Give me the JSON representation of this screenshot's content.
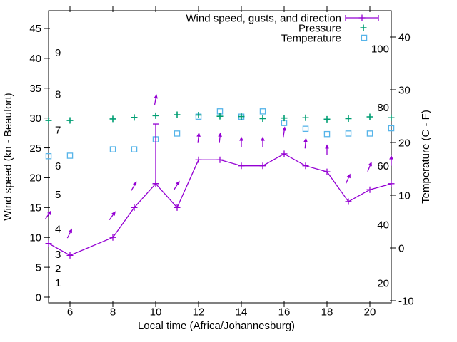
{
  "chart_data": {
    "type": "line",
    "title": "",
    "xlabel": "Local time (Africa/Johannesburg)",
    "ylabel": "Wind speed (kn - Beaufort)",
    "y2label": "Temperature (C - F)",
    "legend": [
      "Wind speed, gusts, and direction",
      "Pressure",
      "Temperature"
    ],
    "legend_position": "top-right-inside",
    "grid": false,
    "x_axis": {
      "lim": [
        5,
        21
      ],
      "ticks": [
        6,
        8,
        10,
        12,
        14,
        16,
        18,
        20
      ]
    },
    "y_axis_wind_kn": {
      "lim": [
        -1,
        48
      ],
      "ticks": [
        0,
        5,
        10,
        15,
        20,
        25,
        30,
        35,
        40,
        45
      ]
    },
    "y2_axis_temp_c": {
      "lim": [
        -10,
        44
      ],
      "ticks": [
        -10,
        0,
        10,
        20,
        30,
        40
      ]
    },
    "fahrenheit_inner_labels": [
      20,
      40,
      60,
      80,
      100
    ],
    "beaufort_inner_labels": [
      {
        "b": "1",
        "kn": 2.4
      },
      {
        "b": "2",
        "kn": 4.8
      },
      {
        "b": "3",
        "kn": 7.2
      },
      {
        "b": "4",
        "kn": 11.4
      },
      {
        "b": "5",
        "kn": 17.2
      },
      {
        "b": "6",
        "kn": 22.0
      },
      {
        "b": "7",
        "kn": 28.0
      },
      {
        "b": "8",
        "kn": 34.0
      },
      {
        "b": "9",
        "kn": 41.0
      }
    ],
    "hours": [
      5,
      6,
      8,
      9,
      10,
      11,
      12,
      13,
      14,
      15,
      16,
      17,
      18,
      19,
      20,
      21
    ],
    "series": [
      {
        "name": "Wind speed, gusts, and direction",
        "style": "line-with-error-bars",
        "color": "#9400d3",
        "axis": "wind_kn",
        "speed_kn": [
          9,
          7,
          10,
          15,
          19,
          15,
          23,
          23,
          22,
          22,
          24,
          22,
          21,
          16,
          18,
          19
        ],
        "gust_kn": [
          9,
          7,
          10,
          15,
          29,
          15,
          23,
          23,
          22,
          22,
          24,
          22,
          21,
          16,
          18,
          19
        ]
      },
      {
        "name": "Pressure",
        "style": "points-plus",
        "color": "#009e73",
        "axis": "wind_kn_scale",
        "values_inhg": [
          29.6,
          29.6,
          29.85,
          30.1,
          30.4,
          30.55,
          30.5,
          30.3,
          30.25,
          29.9,
          30.0,
          30.05,
          29.8,
          29.9,
          30.2,
          30.05
        ]
      },
      {
        "name": "Temperature",
        "style": "points-open-square",
        "color": "#56b4e9",
        "axis": "temp_c",
        "values_c": [
          17.4,
          17.5,
          18.7,
          18.7,
          20.6,
          21.7,
          24.9,
          25.9,
          24.9,
          25.9,
          23.7,
          22.6,
          21.6,
          21.7,
          21.7,
          22.7
        ]
      }
    ],
    "wind_direction_arrows": [
      {
        "hour": 5,
        "tip_kn": 14.5,
        "angle_deg": 55
      },
      {
        "hour": 6,
        "tip_kn": 11.5,
        "angle_deg": 64
      },
      {
        "hour": 8,
        "tip_kn": 14.4,
        "angle_deg": 55
      },
      {
        "hour": 9,
        "tip_kn": 19.4,
        "angle_deg": 60
      },
      {
        "hour": 10,
        "tip_kn": 34.0,
        "angle_deg": 80
      },
      {
        "hour": 11,
        "tip_kn": 19.5,
        "angle_deg": 58
      },
      {
        "hour": 12,
        "tip_kn": 27.6,
        "angle_deg": 84
      },
      {
        "hour": 13,
        "tip_kn": 27.6,
        "angle_deg": 84
      },
      {
        "hour": 14,
        "tip_kn": 26.9,
        "angle_deg": 90
      },
      {
        "hour": 15,
        "tip_kn": 26.9,
        "angle_deg": 90
      },
      {
        "hour": 16,
        "tip_kn": 28.6,
        "angle_deg": 82
      },
      {
        "hour": 17,
        "tip_kn": 26.7,
        "angle_deg": 85
      },
      {
        "hour": 18,
        "tip_kn": 25.6,
        "angle_deg": 90
      },
      {
        "hour": 19,
        "tip_kn": 20.7,
        "angle_deg": 66
      },
      {
        "hour": 20,
        "tip_kn": 22.7,
        "angle_deg": 68
      },
      {
        "hour": 21,
        "tip_kn": 23.8,
        "angle_deg": 90
      }
    ],
    "colors": {
      "wind": "#9400d3",
      "pressure": "#009e73",
      "temperature": "#56b4e9",
      "text": "#000000"
    }
  }
}
